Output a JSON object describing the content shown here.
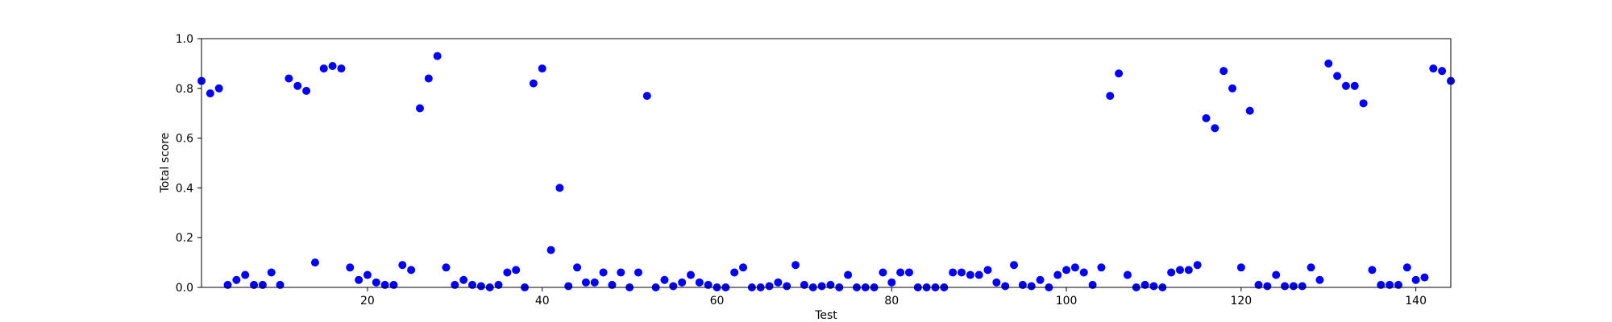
{
  "chart_data": {
    "type": "scatter",
    "title": "",
    "xlabel": "Test",
    "ylabel": "Total score",
    "xlim": [
      1,
      144
    ],
    "ylim": [
      0.0,
      1.0
    ],
    "xticks": [
      20,
      40,
      60,
      80,
      100,
      120,
      140
    ],
    "xtick_labels": [
      "20",
      "40",
      "60",
      "80",
      "100",
      "120",
      "140"
    ],
    "yticks": [
      0.0,
      0.2,
      0.4,
      0.6,
      0.8,
      1.0
    ],
    "ytick_labels": [
      "0.0",
      "0.2",
      "0.4",
      "0.6",
      "0.8",
      "1.0"
    ],
    "grid": false,
    "marker_color": "#0000ff",
    "series": [
      {
        "x": [
          1,
          2,
          3,
          4,
          5,
          6,
          7,
          8,
          9,
          10,
          11,
          12,
          13,
          14,
          15,
          16,
          17,
          18,
          19,
          20,
          21,
          22,
          23,
          24,
          25,
          26,
          27,
          28,
          29,
          30,
          31,
          32,
          33,
          34,
          35,
          36,
          37,
          38,
          39,
          40,
          41,
          42,
          43,
          44,
          45,
          46,
          47,
          48,
          49,
          50,
          51,
          52,
          53,
          54,
          55,
          56,
          57,
          58,
          59,
          60,
          61,
          62,
          63,
          64,
          65,
          66,
          67,
          68,
          69,
          70,
          71,
          72,
          73,
          74,
          75,
          76,
          77,
          78,
          79,
          80,
          81,
          82,
          83,
          84,
          85,
          86,
          87,
          88,
          89,
          90,
          91,
          92,
          93,
          94,
          95,
          96,
          97,
          98,
          99,
          100,
          101,
          102,
          103,
          104,
          105,
          106,
          107,
          108,
          109,
          110,
          111,
          112,
          113,
          114,
          115,
          116,
          117,
          118,
          119,
          120,
          121,
          122,
          123,
          124,
          125,
          126,
          127,
          128,
          129,
          130,
          131,
          132,
          133,
          134,
          135,
          136,
          137,
          138,
          139,
          140,
          141,
          142,
          143,
          144
        ],
        "y": [
          0.83,
          0.78,
          0.8,
          0.01,
          0.03,
          0.05,
          0.01,
          0.01,
          0.06,
          0.01,
          0.84,
          0.81,
          0.79,
          0.1,
          0.88,
          0.89,
          0.88,
          0.08,
          0.03,
          0.05,
          0.02,
          0.01,
          0.01,
          0.09,
          0.07,
          0.72,
          0.84,
          0.93,
          0.08,
          0.01,
          0.03,
          0.01,
          0.005,
          0.0,
          0.01,
          0.06,
          0.07,
          0.0,
          0.82,
          0.88,
          0.15,
          0.4,
          0.005,
          0.08,
          0.02,
          0.02,
          0.06,
          0.01,
          0.06,
          0.0,
          0.06,
          0.77,
          0.0,
          0.03,
          0.005,
          0.02,
          0.05,
          0.02,
          0.01,
          0.0,
          0.0,
          0.06,
          0.08,
          0.0,
          0.0,
          0.005,
          0.02,
          0.005,
          0.09,
          0.01,
          0.0,
          0.005,
          0.01,
          0.0,
          0.05,
          0.0,
          0.0,
          0.0,
          0.06,
          0.02,
          0.06,
          0.06,
          0.0,
          0.0,
          0.0,
          0.0,
          0.06,
          0.06,
          0.05,
          0.05,
          0.07,
          0.02,
          0.005,
          0.09,
          0.01,
          0.005,
          0.03,
          0.0,
          0.05,
          0.07,
          0.08,
          0.06,
          0.01,
          0.08,
          0.77,
          0.86,
          0.05,
          0.0,
          0.01,
          0.005,
          0.0,
          0.06,
          0.07,
          0.07,
          0.09,
          0.68,
          0.64,
          0.87,
          0.8,
          0.08,
          0.71,
          0.01,
          0.005,
          0.05,
          0.005,
          0.005,
          0.005,
          0.08,
          0.03,
          0.9,
          0.85,
          0.81,
          0.81,
          0.74,
          0.07,
          0.01,
          0.01,
          0.01,
          0.08,
          0.03,
          0.04,
          0.88,
          0.87,
          0.83
        ]
      }
    ]
  }
}
